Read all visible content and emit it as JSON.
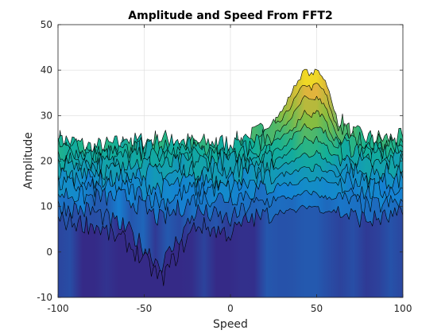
{
  "chart_data": {
    "type": "area",
    "subtype": "waterfall-3d",
    "title": "Amplitude and Speed From FFT2",
    "xlabel": "Speed",
    "ylabel": "Amplitude",
    "xlim": [
      -100,
      100
    ],
    "ylim": [
      -10,
      50
    ],
    "xticks": [
      -100,
      -50,
      0,
      50,
      100
    ],
    "yticks": [
      -10,
      0,
      10,
      20,
      30,
      40,
      50
    ],
    "xtick_labels": [
      "-100",
      "-50",
      "0",
      "50",
      "100"
    ],
    "ytick_labels": [
      "-10",
      "0",
      "10",
      "20",
      "30",
      "40",
      "50"
    ],
    "grid": true,
    "colormap": "parula",
    "noise_floor": 24,
    "minimum": {
      "x": -40,
      "y": -6
    },
    "peak_region": {
      "x_start": 30,
      "x_end": 60,
      "max_amplitude": 40
    },
    "series": [
      {
        "points": [
          [
            -100,
            25
          ],
          [
            -80,
            23
          ],
          [
            -60,
            24
          ],
          [
            -40,
            25
          ],
          [
            -20,
            24
          ],
          [
            0,
            24
          ],
          [
            10,
            25
          ],
          [
            20,
            27
          ],
          [
            30,
            31
          ],
          [
            38,
            37
          ],
          [
            43,
            40
          ],
          [
            47,
            39
          ],
          [
            50,
            40
          ],
          [
            53,
            39
          ],
          [
            56,
            37
          ],
          [
            60,
            31
          ],
          [
            70,
            26
          ],
          [
            80,
            25
          ],
          [
            100,
            25
          ]
        ]
      },
      {
        "points": [
          [
            -100,
            24
          ],
          [
            -80,
            22
          ],
          [
            -60,
            23
          ],
          [
            -40,
            24
          ],
          [
            -20,
            23
          ],
          [
            0,
            23
          ],
          [
            10,
            24
          ],
          [
            20,
            26
          ],
          [
            30,
            29
          ],
          [
            38,
            34
          ],
          [
            43,
            37
          ],
          [
            47,
            36
          ],
          [
            50,
            37
          ],
          [
            53,
            36
          ],
          [
            56,
            34
          ],
          [
            60,
            29
          ],
          [
            70,
            25
          ],
          [
            80,
            24
          ],
          [
            100,
            24
          ]
        ]
      },
      {
        "points": [
          [
            -100,
            23
          ],
          [
            -80,
            21
          ],
          [
            -60,
            22
          ],
          [
            -40,
            23
          ],
          [
            -20,
            22
          ],
          [
            0,
            22
          ],
          [
            10,
            23
          ],
          [
            20,
            25
          ],
          [
            30,
            27
          ],
          [
            38,
            31
          ],
          [
            43,
            34
          ],
          [
            47,
            33
          ],
          [
            50,
            34
          ],
          [
            53,
            33
          ],
          [
            56,
            31
          ],
          [
            60,
            27
          ],
          [
            70,
            24
          ],
          [
            80,
            23
          ],
          [
            100,
            23
          ]
        ]
      },
      {
        "points": [
          [
            -100,
            22
          ],
          [
            -80,
            20
          ],
          [
            -60,
            21
          ],
          [
            -40,
            21
          ],
          [
            -20,
            21
          ],
          [
            0,
            21
          ],
          [
            10,
            22
          ],
          [
            20,
            23
          ],
          [
            30,
            25
          ],
          [
            38,
            28
          ],
          [
            43,
            31
          ],
          [
            47,
            30
          ],
          [
            50,
            31
          ],
          [
            53,
            30
          ],
          [
            56,
            28
          ],
          [
            60,
            25
          ],
          [
            70,
            23
          ],
          [
            80,
            22
          ],
          [
            100,
            22
          ]
        ]
      },
      {
        "points": [
          [
            -100,
            20
          ],
          [
            -80,
            19
          ],
          [
            -60,
            20
          ],
          [
            -40,
            19
          ],
          [
            -20,
            20
          ],
          [
            0,
            20
          ],
          [
            10,
            21
          ],
          [
            20,
            22
          ],
          [
            30,
            23
          ],
          [
            38,
            26
          ],
          [
            43,
            28
          ],
          [
            47,
            27
          ],
          [
            50,
            28
          ],
          [
            53,
            27
          ],
          [
            56,
            26
          ],
          [
            60,
            23
          ],
          [
            70,
            21
          ],
          [
            80,
            21
          ],
          [
            100,
            21
          ]
        ]
      },
      {
        "points": [
          [
            -100,
            19
          ],
          [
            -80,
            18
          ],
          [
            -60,
            18
          ],
          [
            -40,
            17
          ],
          [
            -20,
            18
          ],
          [
            0,
            18
          ],
          [
            10,
            19
          ],
          [
            20,
            20
          ],
          [
            30,
            21
          ],
          [
            38,
            23
          ],
          [
            43,
            25
          ],
          [
            47,
            24
          ],
          [
            50,
            25
          ],
          [
            53,
            24
          ],
          [
            56,
            23
          ],
          [
            60,
            21
          ],
          [
            70,
            20
          ],
          [
            80,
            19
          ],
          [
            100,
            20
          ]
        ]
      },
      {
        "points": [
          [
            -100,
            17
          ],
          [
            -80,
            16
          ],
          [
            -60,
            16
          ],
          [
            -40,
            14
          ],
          [
            -20,
            16
          ],
          [
            0,
            16
          ],
          [
            10,
            17
          ],
          [
            20,
            18
          ],
          [
            30,
            19
          ],
          [
            38,
            20
          ],
          [
            43,
            22
          ],
          [
            47,
            21
          ],
          [
            50,
            22
          ],
          [
            53,
            21
          ],
          [
            56,
            20
          ],
          [
            60,
            19
          ],
          [
            70,
            18
          ],
          [
            80,
            17
          ],
          [
            100,
            18
          ]
        ]
      },
      {
        "points": [
          [
            -100,
            15
          ],
          [
            -80,
            14
          ],
          [
            -60,
            14
          ],
          [
            -40,
            11
          ],
          [
            -20,
            14
          ],
          [
            0,
            14
          ],
          [
            10,
            15
          ],
          [
            20,
            16
          ],
          [
            30,
            17
          ],
          [
            38,
            18
          ],
          [
            43,
            19
          ],
          [
            47,
            18
          ],
          [
            50,
            19
          ],
          [
            53,
            18
          ],
          [
            56,
            18
          ],
          [
            60,
            17
          ],
          [
            70,
            16
          ],
          [
            80,
            15
          ],
          [
            100,
            16
          ]
        ]
      },
      {
        "points": [
          [
            -100,
            13
          ],
          [
            -80,
            12
          ],
          [
            -60,
            12
          ],
          [
            -40,
            7
          ],
          [
            -20,
            12
          ],
          [
            0,
            12
          ],
          [
            10,
            13
          ],
          [
            20,
            14
          ],
          [
            30,
            15
          ],
          [
            38,
            15
          ],
          [
            43,
            16
          ],
          [
            47,
            16
          ],
          [
            50,
            16
          ],
          [
            53,
            16
          ],
          [
            56,
            15
          ],
          [
            60,
            15
          ],
          [
            70,
            14
          ],
          [
            80,
            13
          ],
          [
            100,
            14
          ]
        ]
      },
      {
        "points": [
          [
            -100,
            10
          ],
          [
            -80,
            9
          ],
          [
            -60,
            5
          ],
          [
            -40,
            -3
          ],
          [
            -20,
            9
          ],
          [
            0,
            7
          ],
          [
            10,
            10
          ],
          [
            20,
            11
          ],
          [
            30,
            12
          ],
          [
            38,
            12
          ],
          [
            43,
            13
          ],
          [
            47,
            13
          ],
          [
            50,
            13
          ],
          [
            53,
            12
          ],
          [
            56,
            12
          ],
          [
            60,
            12
          ],
          [
            70,
            11
          ],
          [
            80,
            10
          ],
          [
            100,
            11
          ]
        ]
      },
      {
        "points": [
          [
            -100,
            7
          ],
          [
            -80,
            6
          ],
          [
            -60,
            2
          ],
          [
            -40,
            -6
          ],
          [
            -20,
            6
          ],
          [
            0,
            4
          ],
          [
            10,
            7
          ],
          [
            20,
            8
          ],
          [
            30,
            9
          ],
          [
            38,
            9
          ],
          [
            43,
            10
          ],
          [
            47,
            10
          ],
          [
            50,
            10
          ],
          [
            53,
            9
          ],
          [
            56,
            9
          ],
          [
            60,
            9
          ],
          [
            70,
            8
          ],
          [
            80,
            7
          ],
          [
            100,
            8
          ]
        ]
      }
    ]
  }
}
